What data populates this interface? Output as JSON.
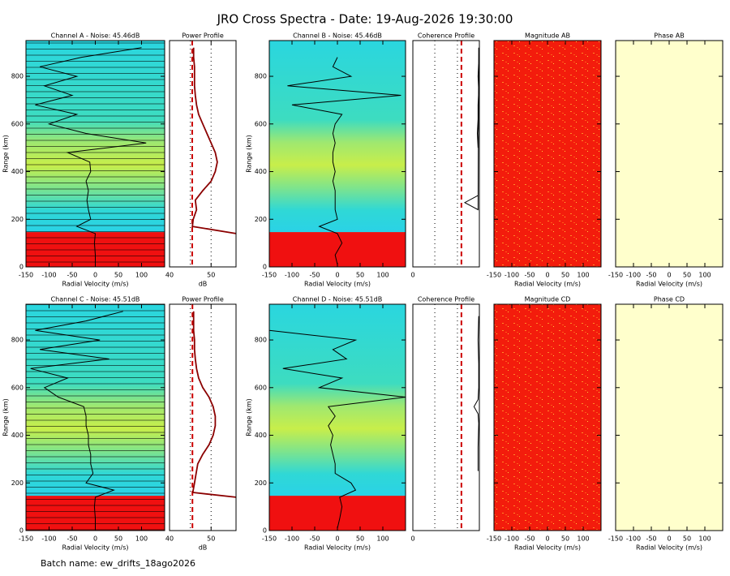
{
  "title": "JRO Cross Spectra - Date: 19-Aug-2026 19:30:00",
  "footer": "Batch name: ew_drifts_18ago2026",
  "chart_data": [
    {
      "type": "spectra",
      "title": "Channel A - Noise: 45.46dB",
      "xlabel": "Radial Velocity (m/s)",
      "ylabel": "Range (km)",
      "xlim": [
        -150,
        150
      ],
      "xticks": [
        -150,
        -100,
        -50,
        0,
        50,
        100
      ],
      "ylim": [
        0,
        950
      ],
      "yticks": [
        0,
        200,
        400,
        600,
        800
      ],
      "range_lines": true,
      "y": [
        10,
        50,
        100,
        140,
        170,
        200,
        240,
        280,
        320,
        360,
        400,
        440,
        480,
        520,
        560,
        600,
        640,
        680,
        720,
        760,
        800,
        840,
        880,
        920
      ],
      "values": [
        0,
        0,
        -2,
        0,
        -40,
        -10,
        -15,
        -18,
        -15,
        -20,
        -10,
        -12,
        -60,
        110,
        -20,
        -100,
        -40,
        -130,
        -50,
        -110,
        -40,
        -120,
        -30,
        100
      ],
      "color": "#000000"
    },
    {
      "type": "power",
      "title": "Power Profile",
      "xlabel": "dB",
      "xlim": [
        40,
        56
      ],
      "xticks": [
        40,
        50
      ],
      "ylim": [
        0,
        950
      ],
      "xgrid": [
        45,
        50
      ],
      "noise": 45.46,
      "color": "#8b0000",
      "noise_color": "#cc0000",
      "y": [
        140,
        170,
        200,
        240,
        280,
        320,
        360,
        400,
        440,
        480,
        520,
        560,
        600,
        640,
        680,
        720,
        760,
        800,
        840,
        880,
        920
      ],
      "values": [
        56,
        45.5,
        45.7,
        46.5,
        46.2,
        48,
        50,
        51,
        51.5,
        51,
        50,
        49,
        48,
        47,
        46.5,
        46.2,
        46,
        46,
        46,
        45.8,
        45.8
      ]
    },
    {
      "type": "spectra",
      "title": "Channel B - Noise: 45.46dB",
      "xlabel": "Radial Velocity (m/s)",
      "ylabel": "Range (km)",
      "xlim": [
        -150,
        150
      ],
      "xticks": [
        -150,
        -100,
        -50,
        0,
        50,
        100
      ],
      "ylim": [
        0,
        950
      ],
      "yticks": [
        0,
        200,
        400,
        600,
        800
      ],
      "range_lines": false,
      "y": [
        10,
        50,
        100,
        140,
        170,
        200,
        240,
        280,
        320,
        360,
        400,
        440,
        480,
        520,
        560,
        600,
        640,
        680,
        720,
        760,
        800,
        840,
        880
      ],
      "values": [
        0,
        -5,
        10,
        0,
        -40,
        0,
        -5,
        -5,
        -5,
        -10,
        -5,
        -10,
        -10,
        -5,
        -10,
        -5,
        10,
        -100,
        140,
        -110,
        30,
        -10,
        0
      ],
      "color": "#000000"
    },
    {
      "type": "coherence",
      "title": "Coherence Profile",
      "xlim": [
        0,
        1
      ],
      "xticks": [
        0
      ],
      "ylim": [
        0,
        950
      ],
      "xgrid": [
        0.33,
        0.67
      ],
      "threshold": 0.73,
      "color": "#000000",
      "noise_color": "#cc0000",
      "y": [
        500,
        560,
        620,
        680,
        740,
        800,
        860,
        920,
        240,
        270,
        300
      ],
      "values": [
        0.98,
        0.97,
        0.98,
        0.98,
        0.99,
        0.98,
        0.99,
        0.99,
        0.98,
        0.78,
        0.98
      ]
    },
    {
      "type": "magnitude",
      "title": "Magnitude AB",
      "xlabel": "Radial Velocity (m/s)",
      "xlim": [
        -150,
        150
      ],
      "xticks": [
        -150,
        -100,
        -50,
        0,
        50,
        100
      ],
      "ylim": [
        0,
        950
      ],
      "yticks": [
        0,
        200,
        400,
        600,
        800
      ]
    },
    {
      "type": "phase",
      "title": "Phase AB",
      "xlabel": "Radial Velocity (m/s)",
      "xlim": [
        -150,
        150
      ],
      "xticks": [
        -150,
        -100,
        -50,
        0,
        50,
        100
      ],
      "ylim": [
        0,
        950
      ],
      "yticks": [
        0,
        200,
        400,
        600,
        800
      ]
    },
    {
      "type": "spectra",
      "title": "Channel C - Noise: 45.51dB",
      "xlabel": "Radial Velocity (m/s)",
      "ylabel": "Range (km)",
      "xlim": [
        -150,
        150
      ],
      "xticks": [
        -150,
        -100,
        -50,
        0,
        50,
        100
      ],
      "ylim": [
        0,
        950
      ],
      "yticks": [
        0,
        200,
        400,
        600,
        800
      ],
      "range_lines": true,
      "y": [
        10,
        50,
        100,
        140,
        170,
        200,
        240,
        280,
        320,
        360,
        400,
        440,
        480,
        520,
        560,
        600,
        640,
        680,
        720,
        760,
        800,
        840,
        880,
        920
      ],
      "values": [
        0,
        0,
        -2,
        0,
        40,
        -20,
        -5,
        -10,
        -10,
        -15,
        -15,
        -20,
        -20,
        -25,
        -80,
        -110,
        -60,
        -140,
        30,
        -120,
        10,
        -130,
        -20,
        60
      ],
      "color": "#000000"
    },
    {
      "type": "power",
      "title": "Power Profile",
      "xlabel": "dB",
      "xlim": [
        40,
        56
      ],
      "xticks": [
        40,
        50
      ],
      "ylim": [
        0,
        950
      ],
      "xgrid": [
        45,
        50
      ],
      "noise": 45.51,
      "color": "#8b0000",
      "noise_color": "#cc0000",
      "y": [
        140,
        160,
        200,
        240,
        280,
        320,
        360,
        400,
        440,
        480,
        520,
        560,
        600,
        640,
        680,
        720,
        760,
        800,
        840,
        880,
        920
      ],
      "values": [
        56,
        45.6,
        46,
        46.4,
        46.8,
        48,
        49.5,
        50.5,
        51,
        51,
        50.5,
        49.5,
        48,
        47,
        46.5,
        46.2,
        46,
        46,
        45.8,
        45.8,
        45.8
      ]
    },
    {
      "type": "spectra",
      "title": "Channel D - Noise: 45.51dB",
      "xlabel": "Radial Velocity (m/s)",
      "ylabel": "Range (km)",
      "xlim": [
        -150,
        150
      ],
      "xticks": [
        -150,
        -100,
        -50,
        0,
        50,
        100
      ],
      "ylim": [
        0,
        950
      ],
      "yticks": [
        0,
        200,
        400,
        600,
        800
      ],
      "range_lines": false,
      "y": [
        10,
        50,
        100,
        140,
        170,
        200,
        240,
        280,
        320,
        360,
        400,
        440,
        480,
        520,
        560,
        600,
        640,
        680,
        720,
        760,
        800,
        840
      ],
      "values": [
        0,
        5,
        10,
        5,
        40,
        30,
        -5,
        -5,
        -10,
        -15,
        -10,
        -20,
        -5,
        -20,
        150,
        -40,
        10,
        -120,
        20,
        -10,
        40,
        -150
      ],
      "color": "#000000"
    },
    {
      "type": "coherence",
      "title": "Coherence Profile",
      "xlim": [
        0,
        1
      ],
      "xticks": [
        0
      ],
      "ylim": [
        0,
        950
      ],
      "xgrid": [
        0.33,
        0.67
      ],
      "threshold": 0.73,
      "color": "#000000",
      "noise_color": "#cc0000",
      "y": [
        250,
        350,
        450,
        490,
        520,
        550,
        600,
        700,
        800,
        900
      ],
      "values": [
        0.98,
        0.98,
        0.99,
        0.98,
        0.92,
        0.98,
        0.99,
        0.99,
        0.98,
        0.99
      ]
    },
    {
      "type": "magnitude",
      "title": "Magnitude CD",
      "xlabel": "Radial Velocity (m/s)",
      "xlim": [
        -150,
        150
      ],
      "xticks": [
        -150,
        -100,
        -50,
        0,
        50,
        100
      ],
      "ylim": [
        0,
        950
      ],
      "yticks": [
        0,
        200,
        400,
        600,
        800
      ]
    },
    {
      "type": "phase",
      "title": "Phase CD",
      "xlabel": "Radial Velocity (m/s)",
      "xlim": [
        -150,
        150
      ],
      "xticks": [
        -150,
        -100,
        -50,
        0,
        50,
        100
      ],
      "ylim": [
        0,
        950
      ],
      "yticks": [
        0,
        200,
        400,
        600,
        800
      ]
    }
  ]
}
